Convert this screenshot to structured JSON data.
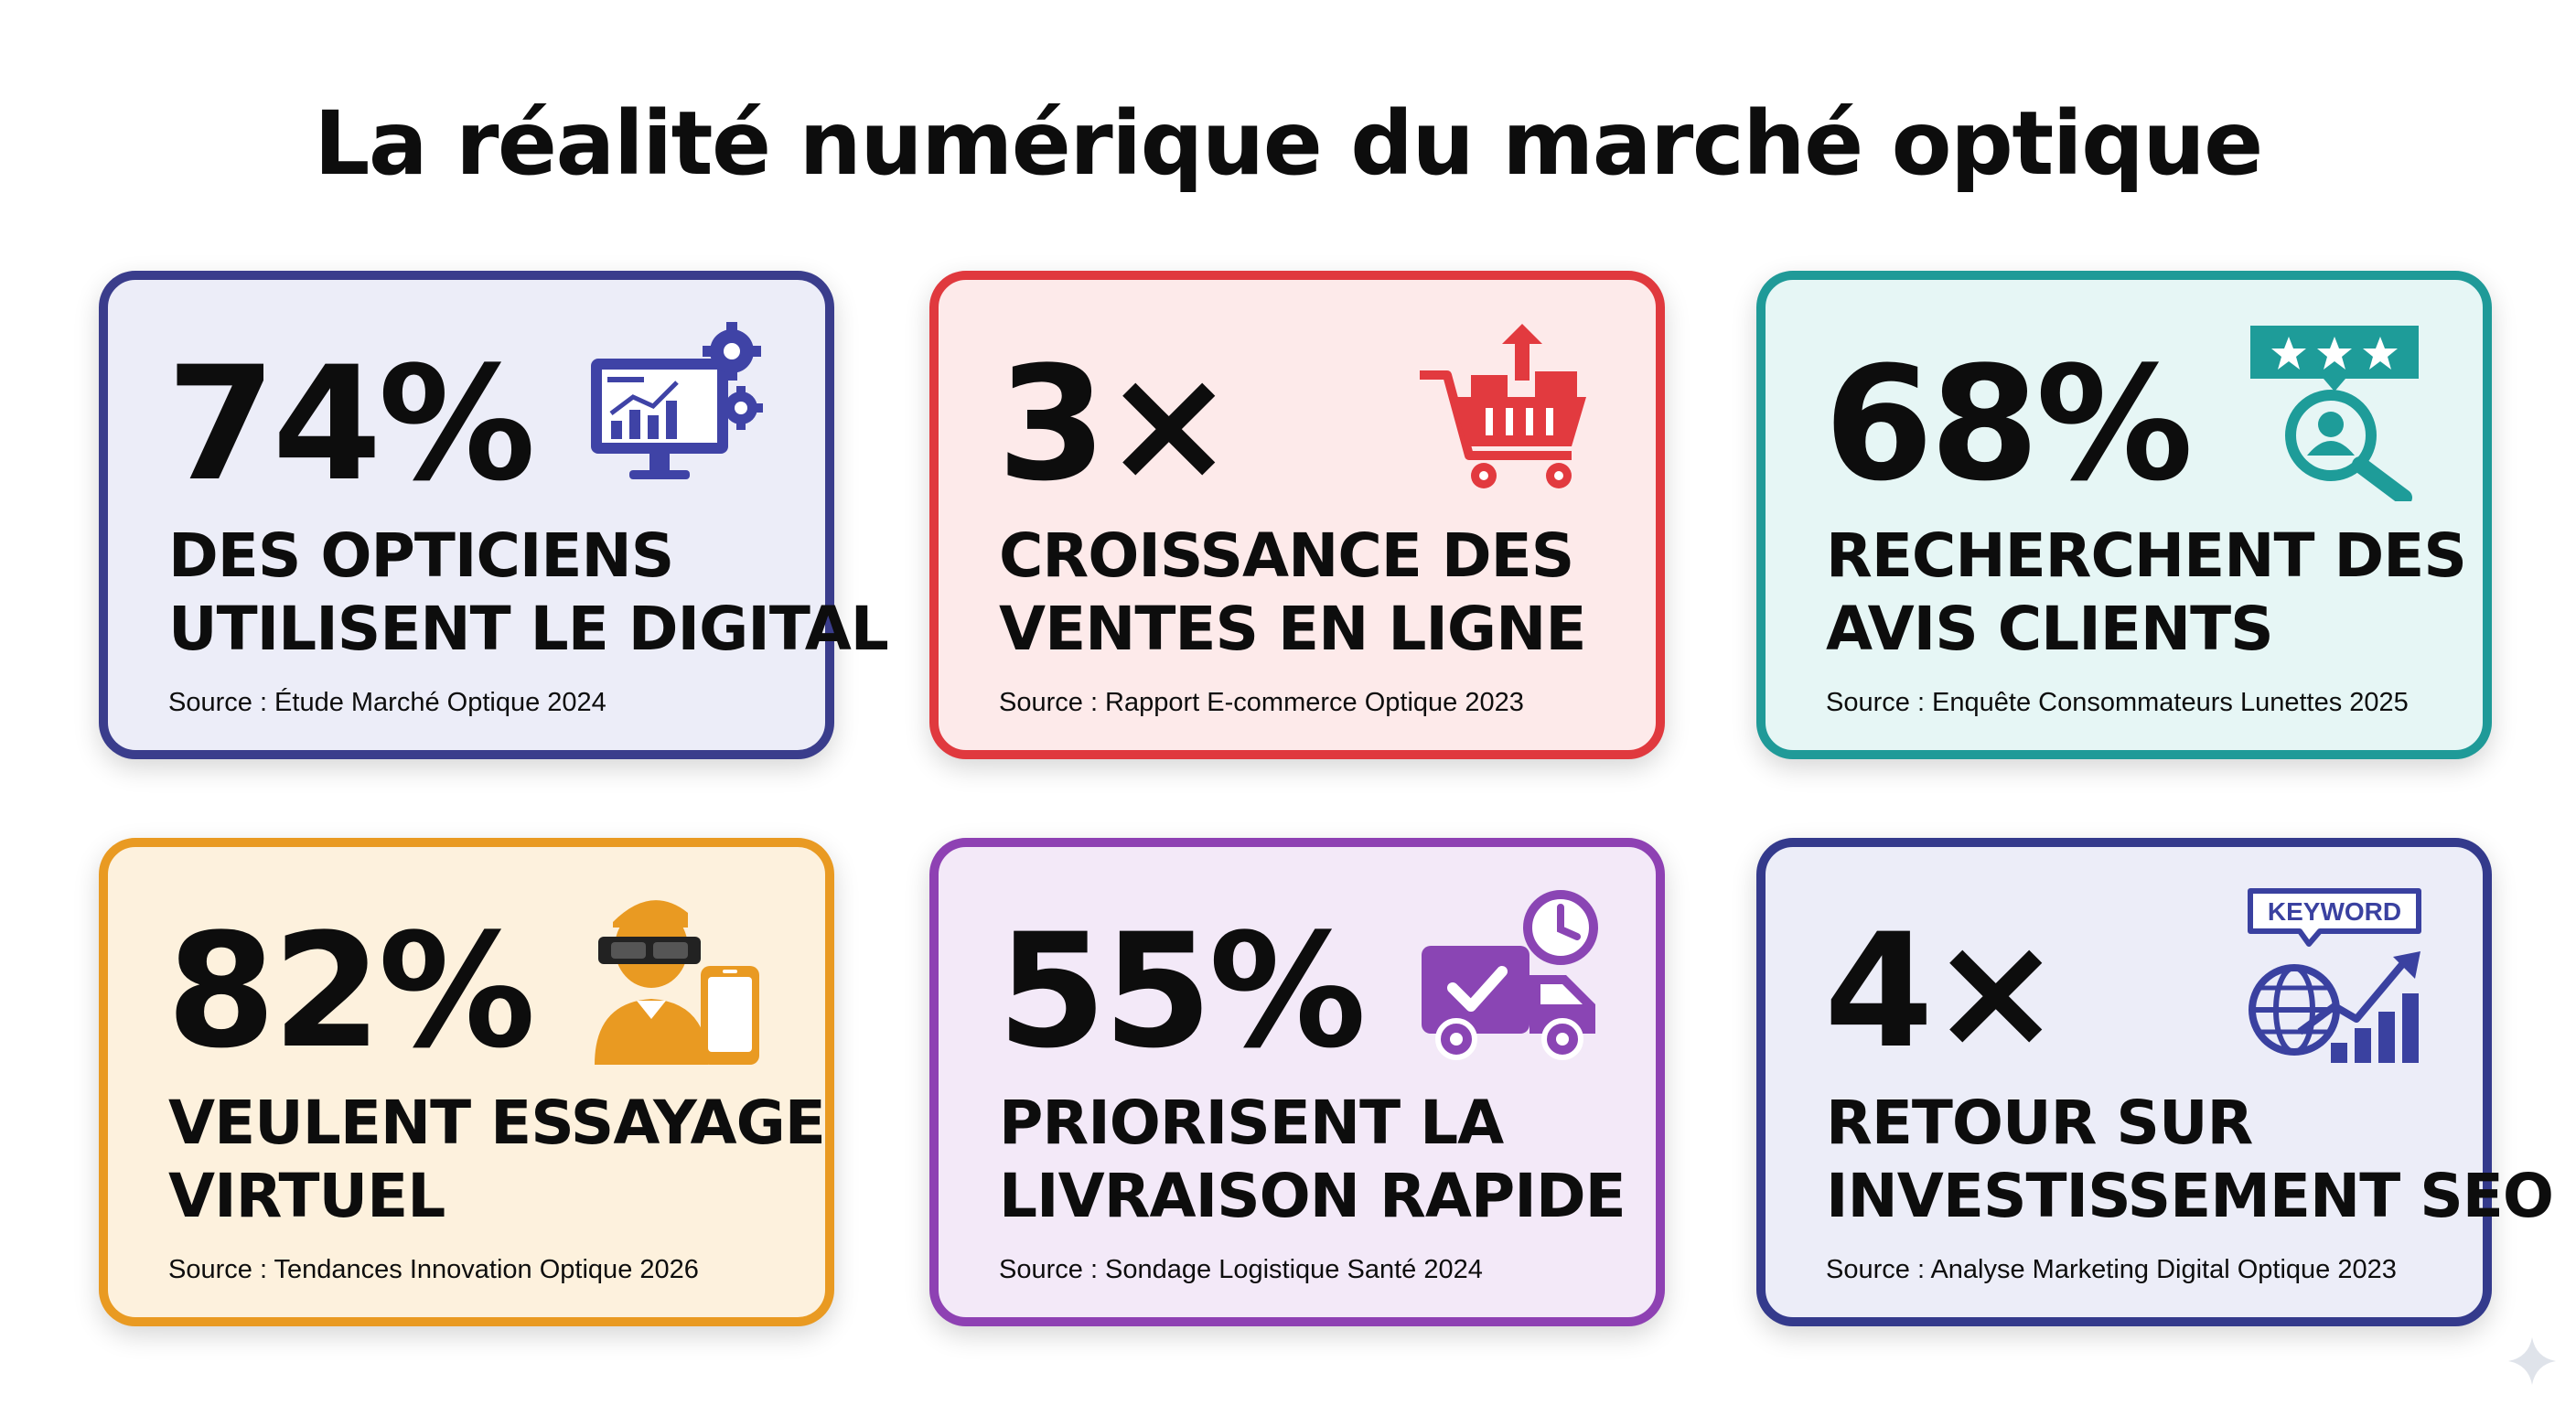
{
  "title": "La réalité numérique du marché optique",
  "cards": [
    {
      "stat": "74%",
      "line1": "DES OPTICIENS",
      "line2": "UTILISENT LE DIGITAL",
      "source": "Source : Étude Marché Optique 2024",
      "icon": "monitor-analytics-gears-icon",
      "border": "#3a3d8c",
      "background": "#ecedf8",
      "accent": "#3f43a6"
    },
    {
      "stat": "3×",
      "line1": "CROISSANCE DES",
      "line2": "VENTES EN LIGNE",
      "source": "Source : Rapport E-commerce Optique 2023",
      "icon": "shopping-cart-growth-icon",
      "border": "#e0393e",
      "background": "#fdeaea",
      "accent": "#e23a3f"
    },
    {
      "stat": "68%",
      "line1": "RECHERCHENT DES",
      "line2": "AVIS CLIENTS",
      "source": "Source : Enquête Consommateurs Lunettes 2025",
      "icon": "star-rating-search-icon",
      "border": "#1f9a98",
      "background": "#e6f6f5",
      "accent": "#1e9c99"
    },
    {
      "stat": "82%",
      "line1": "VEULENT ESSAYAGE",
      "line2": "VIRTUEL",
      "source": "Source : Tendances Innovation Optique 2026",
      "icon": "person-vr-smartphone-icon",
      "border": "#e99a22",
      "background": "#fdf1dd",
      "accent": "#e99a22"
    },
    {
      "stat": "55%",
      "line1": "PRIORISENT LA",
      "line2": "LIVRAISON RAPIDE",
      "source": "Source : Sondage Logistique Santé 2024",
      "icon": "delivery-truck-clock-icon",
      "border": "#8e41b3",
      "background": "#f3e9f8",
      "accent": "#8a45b4"
    },
    {
      "stat": "4×",
      "line1": "RETOUR SUR",
      "line2": "INVESTISSEMENT SEO",
      "source": "Source : Analyse Marketing Digital Optique 2023",
      "icon": "keyword-globe-chart-icon",
      "icon_text": "KEYWORD",
      "border": "#343a8c",
      "background": "#ecedf8",
      "accent": "#3a41a0"
    }
  ]
}
